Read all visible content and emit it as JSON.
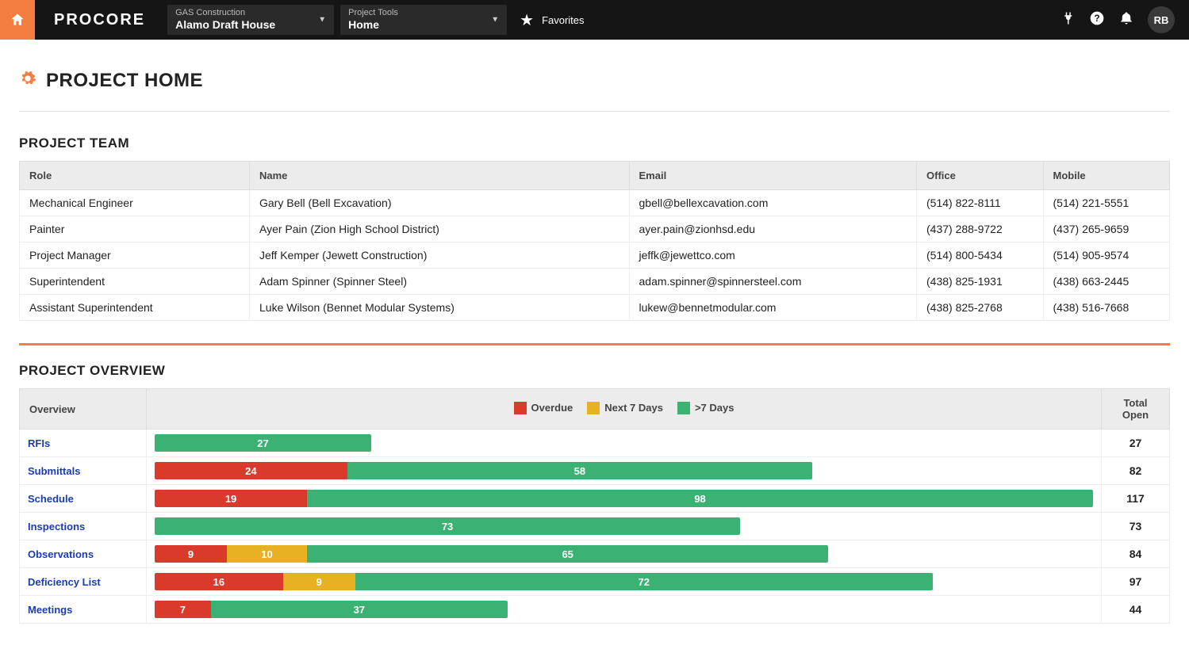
{
  "colors": {
    "accent": "#f47e42",
    "overdue": "#d93a2b",
    "next7": "#e8b023",
    "gt7": "#3bb273",
    "link": "#1a3db5",
    "header_bg": "#ececec",
    "border": "#dddddd"
  },
  "nav": {
    "logo": "PROCORE",
    "company_dd": {
      "line1": "GAS Construction",
      "line2": "Alamo Draft House"
    },
    "tools_dd": {
      "line1": "Project Tools",
      "line2": "Home"
    },
    "favorites": "Favorites",
    "user_initials": "RB"
  },
  "page": {
    "title": "PROJECT HOME"
  },
  "team": {
    "section_title": "PROJECT TEAM",
    "columns": [
      "Role",
      "Name",
      "Email",
      "Office",
      "Mobile"
    ],
    "rows": [
      {
        "role": "Mechanical Engineer",
        "name": "Gary Bell (Bell Excavation)",
        "email": "gbell@bellexcavation.com",
        "office": "(514) 822-8111",
        "mobile": "(514) 221-5551"
      },
      {
        "role": "Painter",
        "name": "Ayer Pain (Zion High School District)",
        "email": "ayer.pain@zionhsd.edu",
        "office": "(437) 288-9722",
        "mobile": "(437) 265-9659"
      },
      {
        "role": "Project Manager",
        "name": "Jeff Kemper (Jewett Construction)",
        "email": "jeffk@jewettco.com",
        "office": "(514) 800-5434",
        "mobile": "(514) 905-9574"
      },
      {
        "role": "Superintendent",
        "name": "Adam Spinner (Spinner Steel)",
        "email": "adam.spinner@spinnersteel.com",
        "office": "(438) 825-1931",
        "mobile": "(438) 663-2445"
      },
      {
        "role": "Assistant Superintendent",
        "name": "Luke Wilson (Bennet Modular Systems)",
        "email": "lukew@bennetmodular.com",
        "office": "(438) 825-2768",
        "mobile": "(438) 516-7668"
      }
    ]
  },
  "overview": {
    "section_title": "PROJECT OVERVIEW",
    "header_label": "Overview",
    "header_total": "Total Open",
    "legend": [
      {
        "label": "Overdue",
        "color": "#d93a2b"
      },
      {
        "label": "Next 7 Days",
        "color": "#e8b023"
      },
      {
        "label": ">7 Days",
        "color": "#3bb273"
      }
    ],
    "rows": [
      {
        "label": "RFIs",
        "overdue": 0,
        "next7": 0,
        "gt7": 27,
        "total": 27
      },
      {
        "label": "Submittals",
        "overdue": 24,
        "next7": 0,
        "gt7": 58,
        "total": 82
      },
      {
        "label": "Schedule",
        "overdue": 19,
        "next7": 0,
        "gt7": 98,
        "total": 117
      },
      {
        "label": "Inspections",
        "overdue": 0,
        "next7": 0,
        "gt7": 73,
        "total": 73
      },
      {
        "label": "Observations",
        "overdue": 9,
        "next7": 10,
        "gt7": 65,
        "total": 84
      },
      {
        "label": "Deficiency List",
        "overdue": 16,
        "next7": 9,
        "gt7": 72,
        "total": 97
      },
      {
        "label": "Meetings",
        "overdue": 7,
        "next7": 0,
        "gt7": 37,
        "total": 44
      }
    ],
    "max_total": 117
  }
}
